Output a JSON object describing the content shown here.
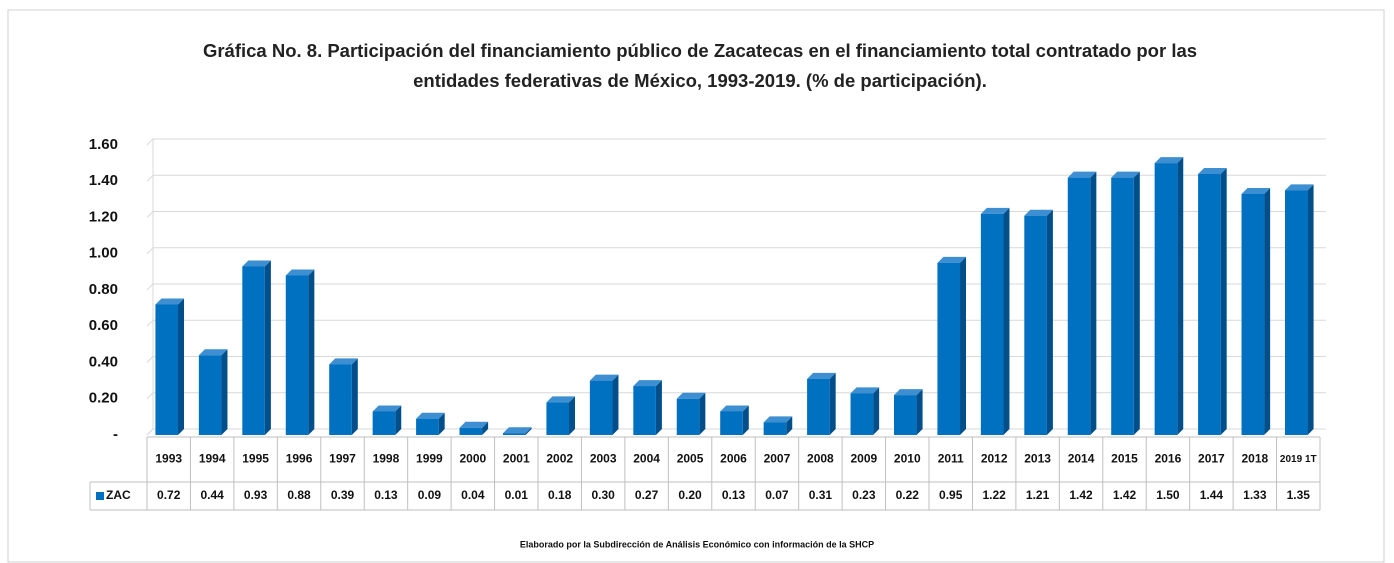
{
  "chart_data": {
    "type": "bar",
    "title": "Gráfica No. 8. Participación del financiamiento público de Zacatecas en el financiamiento total contratado por las entidades federativas de México, 1993-2019. (% de participación).",
    "footer": "Elaborado por la Subdirección de Análisis Económico con información de la SHCP",
    "categories": [
      "1993",
      "1994",
      "1995",
      "1996",
      "1997",
      "1998",
      "1999",
      "2000",
      "2001",
      "2002",
      "2003",
      "2004",
      "2005",
      "2006",
      "2007",
      "2008",
      "2009",
      "2010",
      "2011",
      "2012",
      "2013",
      "2014",
      "2015",
      "2016",
      "2017",
      "2018",
      "2019 1T"
    ],
    "series": [
      {
        "name": "ZAC",
        "color": "#0070c0",
        "values": [
          0.72,
          0.44,
          0.93,
          0.88,
          0.39,
          0.13,
          0.09,
          0.04,
          0.01,
          0.18,
          0.3,
          0.27,
          0.2,
          0.13,
          0.07,
          0.31,
          0.23,
          0.22,
          0.95,
          1.22,
          1.21,
          1.42,
          1.42,
          1.5,
          1.44,
          1.33,
          1.35
        ],
        "value_labels": [
          "0.72",
          "0.44",
          "0.93",
          "0.88",
          "0.39",
          "0.13",
          "0.09",
          "0.04",
          "0.01",
          "0.18",
          "0.30",
          "0.27",
          "0.20",
          "0.13",
          "0.07",
          "0.31",
          "0.23",
          "0.22",
          "0.95",
          "1.22",
          "1.21",
          "1.42",
          "1.42",
          "1.50",
          "1.44",
          "1.33",
          "1.35"
        ]
      }
    ],
    "ylim": [
      0,
      1.6
    ],
    "yticks": [
      {
        "value": 0,
        "label": "-"
      },
      {
        "value": 0.2,
        "label": "0.20"
      },
      {
        "value": 0.4,
        "label": "0.40"
      },
      {
        "value": 0.6,
        "label": "0.60"
      },
      {
        "value": 0.8,
        "label": "0.80"
      },
      {
        "value": 1.0,
        "label": "1.00"
      },
      {
        "value": 1.2,
        "label": "1.20"
      },
      {
        "value": 1.4,
        "label": "1.40"
      },
      {
        "value": 1.6,
        "label": "1.60"
      }
    ],
    "grid": true,
    "data_table": true
  }
}
